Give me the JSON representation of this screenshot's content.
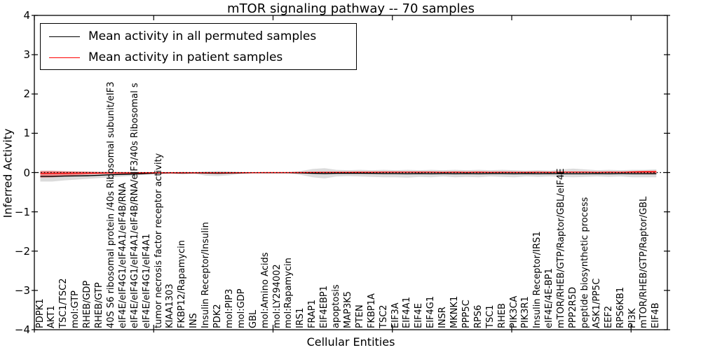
{
  "figure": {
    "title": "mTOR signaling pathway -- 70 samples",
    "xlabel": "Cellular Entities",
    "ylabel": "Inferred Activity"
  },
  "chart_data": {
    "type": "line",
    "title": "mTOR signaling pathway -- 70 samples",
    "xlabel": "Cellular Entities",
    "ylabel": "Inferred Activity",
    "ylim": [
      -4,
      4
    ],
    "yticks": [
      4,
      3,
      2,
      1,
      0,
      -1,
      -2,
      -3,
      -4
    ],
    "x_major_tick_data_positions": [
      0,
      10,
      20,
      30,
      40,
      50
    ],
    "grid": false,
    "legend_position": "upper left",
    "zero_line": {
      "y": 0,
      "style": "dotted",
      "color": "#000000"
    },
    "categories": [
      "PDPK1",
      "AKT1",
      "TSC1/TSC2",
      "mol:GTP",
      "RHEB/GDP",
      "RHEB/GTP",
      "40S S6 ribosomal protein /40s Ribosomal subunit/eIF3",
      "eIF4E/eIF4G1/eIF4A1/eIF4B/RNA",
      "eIF4E/eIF4G1/eIF4A1/eIF4B/RNA/eIF3/40s Ribosomal s",
      "eIF4E/eIF4G1/eIF4A1",
      "tumor necrosis factor receptor activity",
      "KIAA1303",
      "FKBP12/Rapamycin",
      "INS",
      "Insulin Receptor/Insulin",
      "PDK2",
      "mol:PIP3",
      "mol:GDP",
      "GBL",
      "mol:Amino Acids",
      "mol:LY294002",
      "mol:Rapamycin",
      "IRS1",
      "FRAP1",
      "EIF4EBP1",
      "apoptosis",
      "MAP3K5",
      "PTEN",
      "FKBP1A",
      "TSC2",
      "EIF3A",
      "EIF4A1",
      "EIF4E",
      "EIF4G1",
      "INSR",
      "MKNK1",
      "PPP5C",
      "RPS6",
      "TSC1",
      "RHEB",
      "PIK3CA",
      "PIK3R1",
      "Insulin Receptor/IRS1",
      "eIF4E/4E-BP1",
      "mTOR/RHEB/GTP/Raptor/GBL/eIF4E",
      "PPP2R5D",
      "peptide biosynthetic process",
      "ASK1/PP5C",
      "EEF2",
      "RPS6KB1",
      "PI3K",
      "mTOR/RHEB/GTP/Raptor/GBL",
      "EIF4B"
    ],
    "series": [
      {
        "name": "Mean activity in all permuted samples",
        "color": "#000000",
        "values": [
          -0.1,
          -0.1,
          -0.09,
          -0.085,
          -0.08,
          -0.07,
          -0.055,
          -0.045,
          -0.035,
          -0.025,
          -0.015,
          -0.01,
          -0.012,
          -0.01,
          -0.015,
          -0.018,
          -0.015,
          -0.01,
          -0.006,
          -0.005,
          -0.005,
          -0.006,
          -0.01,
          -0.02,
          -0.025,
          -0.02,
          -0.02,
          -0.02,
          -0.022,
          -0.025,
          -0.025,
          -0.03,
          -0.025,
          -0.03,
          -0.025,
          -0.03,
          -0.025,
          -0.03,
          -0.025,
          -0.025,
          -0.03,
          -0.025,
          -0.03,
          -0.025,
          -0.03,
          -0.03,
          -0.03,
          -0.025,
          -0.03,
          -0.025,
          -0.03,
          -0.03,
          -0.03
        ]
      },
      {
        "name": "Mean activity in patient samples",
        "color": "#ff0000",
        "values": [
          -0.02,
          -0.02,
          -0.018,
          -0.015,
          -0.012,
          -0.01,
          -0.01,
          -0.008,
          -0.008,
          -0.006,
          -0.005,
          -0.005,
          -0.005,
          -0.005,
          -0.005,
          -0.005,
          -0.005,
          -0.004,
          -0.003,
          -0.002,
          -0.002,
          -0.001,
          0,
          0.004,
          0.005,
          0.005,
          0.005,
          0.008,
          0.008,
          0.01,
          0.01,
          0.01,
          0.01,
          0.01,
          0.006,
          0.01,
          0.006,
          0.01,
          0.006,
          0.008,
          0.006,
          0.006,
          0.008,
          0.006,
          0.01,
          0.01,
          0.01,
          0.006,
          0.01,
          0.008,
          0.015,
          0.018,
          0.02
        ]
      }
    ],
    "bands": [
      {
        "name": "permuted-samples-range",
        "color": "rgba(0,0,0,0.14)",
        "hi": [
          0.05,
          0.05,
          0.04,
          0.035,
          0.03,
          0.025,
          0.02,
          0.015,
          0.012,
          0.01,
          0.006,
          0.006,
          0.02,
          0.01,
          0.03,
          0.04,
          0.03,
          0.012,
          0.006,
          0.005,
          0.005,
          0.01,
          0.04,
          0.09,
          0.11,
          0.07,
          0.06,
          0.07,
          0.06,
          0.07,
          0.06,
          0.07,
          0.06,
          0.07,
          0.06,
          0.07,
          0.06,
          0.07,
          0.06,
          0.07,
          0.06,
          0.05,
          0.06,
          0.05,
          0.08,
          0.1,
          0.08,
          0.06,
          0.07,
          0.06,
          0.07,
          0.07,
          0.08
        ],
        "lo": [
          -0.23,
          -0.23,
          -0.2,
          -0.18,
          -0.16,
          -0.14,
          -0.12,
          -0.1,
          -0.08,
          -0.05,
          -0.03,
          -0.02,
          -0.05,
          -0.03,
          -0.08,
          -0.09,
          -0.07,
          -0.03,
          -0.015,
          -0.01,
          -0.01,
          -0.02,
          -0.06,
          -0.12,
          -0.15,
          -0.1,
          -0.09,
          -0.1,
          -0.11,
          -0.12,
          -0.12,
          -0.13,
          -0.11,
          -0.12,
          -0.1,
          -0.12,
          -0.11,
          -0.12,
          -0.1,
          -0.11,
          -0.12,
          -0.1,
          -0.11,
          -0.1,
          -0.11,
          -0.12,
          -0.11,
          -0.1,
          -0.11,
          -0.1,
          -0.12,
          -0.12,
          -0.12
        ]
      },
      {
        "name": "patient-samples-range",
        "color": "rgba(255,0,0,0.38)",
        "hi": [
          0.04,
          0.04,
          0.03,
          0.025,
          0.02,
          0.015,
          0.012,
          0.01,
          0.01,
          0.008,
          0.006,
          0.006,
          0.008,
          0.006,
          0.008,
          0.008,
          0.008,
          0.006,
          0.005,
          0.005,
          0.005,
          0.006,
          0.008,
          0.012,
          0.012,
          0.012,
          0.012,
          0.014,
          0.014,
          0.015,
          0.015,
          0.015,
          0.015,
          0.015,
          0.012,
          0.015,
          0.012,
          0.015,
          0.012,
          0.014,
          0.012,
          0.012,
          0.014,
          0.012,
          0.016,
          0.016,
          0.016,
          0.012,
          0.016,
          0.014,
          0.035,
          0.045,
          0.05
        ],
        "lo": [
          -0.13,
          -0.12,
          -0.1,
          -0.07,
          -0.05,
          -0.04,
          -0.032,
          -0.028,
          -0.024,
          -0.02,
          -0.016,
          -0.014,
          -0.016,
          -0.014,
          -0.016,
          -0.016,
          -0.016,
          -0.012,
          -0.01,
          -0.008,
          -0.008,
          -0.008,
          -0.008,
          -0.006,
          -0.005,
          -0.004,
          -0.004,
          -0.002,
          -0.002,
          0,
          0,
          0,
          0,
          0,
          -0.002,
          0,
          -0.002,
          0,
          -0.002,
          0,
          -0.002,
          -0.002,
          0,
          -0.002,
          0.002,
          0.002,
          0.002,
          0,
          0.002,
          0,
          -0.01,
          -0.015,
          -0.02
        ]
      }
    ]
  }
}
